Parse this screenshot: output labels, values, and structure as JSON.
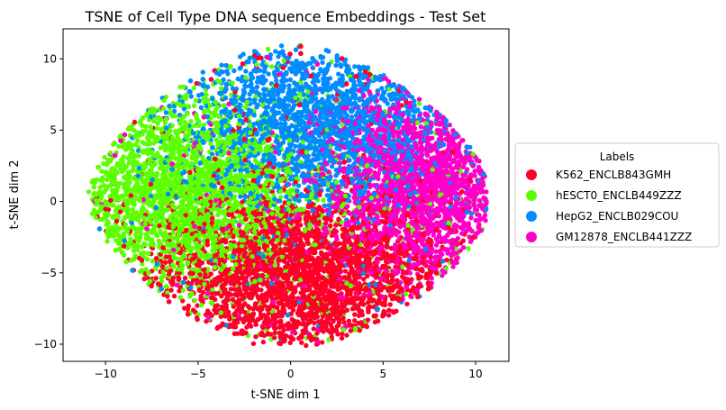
{
  "chart_data": {
    "type": "scatter",
    "title": "TSNE of Cell Type DNA sequence Embeddings - Test Set",
    "xlabel": "t-SNE dim 1",
    "ylabel": "t-SNE dim 2",
    "xlim": [
      -12.3,
      11.8
    ],
    "ylim": [
      -11.2,
      12.1
    ],
    "xticks": [
      -10,
      -5,
      0,
      5,
      10
    ],
    "yticks": [
      -10,
      -5,
      0,
      5,
      10
    ],
    "grid": false,
    "legend": {
      "title": "Labels",
      "placement": "center-right-outside"
    },
    "series": [
      {
        "name": "K562_ENCLB843GMH",
        "color": "#ff0028",
        "region": {
          "cx": 0.5,
          "cy": -5.2,
          "sx": 4.0,
          "sy": 2.9
        },
        "approx_points": 2500,
        "x": [
          -5.5,
          -3.0,
          -1.0,
          0.0,
          1.0,
          2.5,
          4.0,
          5.0,
          -2.0,
          0.5,
          3.0,
          -4.0
        ],
        "y": [
          -7.5,
          -8.5,
          -9.5,
          -9.8,
          -9.5,
          -8.5,
          -7.0,
          -5.0,
          -4.0,
          -5.5,
          -3.0,
          -5.0
        ]
      },
      {
        "name": "hESCT0_ENCLB449ZZZ",
        "color": "#5cff00",
        "region": {
          "cx": -6.0,
          "cy": 0.5,
          "sx": 3.4,
          "sy": 3.3
        },
        "approx_points": 2200,
        "x": [
          -11.0,
          -10.0,
          -9.0,
          -8.0,
          -7.0,
          -6.0,
          -5.0,
          -4.0,
          -8.5,
          -6.5
        ],
        "y": [
          -0.7,
          0.5,
          2.0,
          -2.0,
          4.0,
          -1.5,
          6.5,
          -6.0,
          -4.5,
          3.0
        ]
      },
      {
        "name": "HepG2_ENCLB029COU",
        "color": "#008cff",
        "region": {
          "cx": 1.5,
          "cy": 5.5,
          "sx": 3.8,
          "sy": 2.9
        },
        "approx_points": 1900,
        "x": [
          -1.0,
          0.0,
          1.0,
          2.0,
          3.0,
          4.0,
          -2.0,
          5.0,
          6.0
        ],
        "y": [
          10.5,
          10.8,
          10.9,
          10.0,
          8.5,
          7.0,
          6.5,
          4.0,
          3.0
        ]
      },
      {
        "name": "GM12878_ENCLB441ZZZ",
        "color": "#ff00c8",
        "region": {
          "cx": 7.2,
          "cy": 1.0,
          "sx": 2.7,
          "sy": 3.2
        },
        "approx_points": 1900,
        "x": [
          6.0,
          7.0,
          8.0,
          9.0,
          10.0,
          10.5,
          9.5,
          8.0,
          7.5
        ],
        "y": [
          5.5,
          6.2,
          5.0,
          3.0,
          1.5,
          1.0,
          -1.5,
          -3.5,
          4.0
        ]
      }
    ]
  }
}
